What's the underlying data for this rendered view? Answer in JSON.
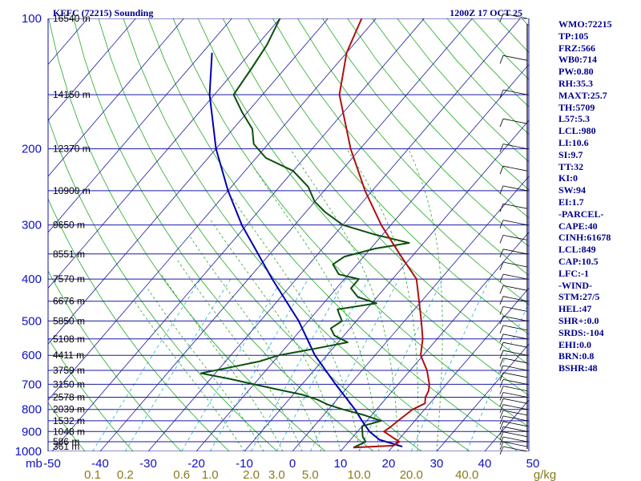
{
  "header": {
    "station": "KFFC (72215) Sounding",
    "time": "1200Z 17 OCT 25"
  },
  "indices": [
    "WMO:72215",
    "TP:105",
    "FRZ:566",
    "WB0:714",
    "PW:0.80",
    "RH:35.3",
    "MAXT:25.7",
    "TH:5709",
    "L57:5.3",
    "LCL:980",
    "LI:10.6",
    "SI:9.7",
    "TT:32",
    "KI:0",
    "SW:94",
    "EI:1.7",
    "-PARCEL-",
    "CAPE:40",
    "CINH:61678",
    "LCL:849",
    "CAP:10.5",
    "LFC:-1",
    "-WIND-",
    "STM:27/5",
    "HEL:47",
    "SHR+:0.0",
    "SRDS:-104",
    "EHI:0.0",
    "BRN:0.8",
    "BSHR:48"
  ],
  "chart_data": {
    "type": "skew-t",
    "x_unit_label": "mb",
    "x_ticks": [
      "-50",
      "-40",
      "-30",
      "-20",
      "-10",
      "0",
      "10",
      "20",
      "30",
      "40",
      "50"
    ],
    "mixing_ratio_unit": "g/kg",
    "mixing_ratio_labels": [
      "0.1",
      "0.2",
      "0.6",
      "1.0",
      "2.0",
      "3.0",
      "5.0",
      "10.0",
      "20.0",
      "40.0"
    ],
    "pressure_labels": [
      "100",
      "200",
      "300",
      "400",
      "500",
      "600",
      "700",
      "800",
      "900",
      "1000"
    ],
    "height_labels": [
      {
        "p": 100,
        "text": "16540 m"
      },
      {
        "p": 150,
        "text": "14150 m"
      },
      {
        "p": 200,
        "text": "12370 m"
      },
      {
        "p": 250,
        "text": "10900 m"
      },
      {
        "p": 300,
        "text": "9650 m"
      },
      {
        "p": 350,
        "text": "8551 m"
      },
      {
        "p": 400,
        "text": "7570 m"
      },
      {
        "p": 450,
        "text": "6676 m"
      },
      {
        "p": 500,
        "text": "5850 m"
      },
      {
        "p": 550,
        "text": "5108 m"
      },
      {
        "p": 600,
        "text": "4411 m"
      },
      {
        "p": 650,
        "text": "3759 m"
      },
      {
        "p": 700,
        "text": "3150 m"
      },
      {
        "p": 750,
        "text": "2578 m"
      },
      {
        "p": 800,
        "text": "2039 m"
      },
      {
        "p": 850,
        "text": "1532 m"
      },
      {
        "p": 900,
        "text": "1048 m"
      },
      {
        "p": 950,
        "text": "586 m"
      },
      {
        "p": 975,
        "text": "361 m"
      }
    ],
    "temperature": [
      [
        980,
        12.0
      ],
      [
        970,
        20.0
      ],
      [
        950,
        20.5
      ],
      [
        925,
        18.0
      ],
      [
        900,
        15.5
      ],
      [
        880,
        16.0
      ],
      [
        850,
        16.5
      ],
      [
        800,
        17.5
      ],
      [
        775,
        19.0
      ],
      [
        750,
        18.0
      ],
      [
        725,
        17.5
      ],
      [
        700,
        16.5
      ],
      [
        650,
        13.5
      ],
      [
        600,
        9.5
      ],
      [
        550,
        7.0
      ],
      [
        500,
        3.5
      ],
      [
        450,
        -0.5
      ],
      [
        400,
        -5.0
      ],
      [
        350,
        -13.0
      ],
      [
        300,
        -22.0
      ],
      [
        250,
        -31.5
      ],
      [
        200,
        -42.0
      ],
      [
        150,
        -54.0
      ],
      [
        120,
        -60.0
      ],
      [
        100,
        -63.0
      ]
    ],
    "dewpoint": [
      [
        980,
        12.0
      ],
      [
        950,
        13.5
      ],
      [
        925,
        12.0
      ],
      [
        900,
        11.0
      ],
      [
        875,
        10.0
      ],
      [
        850,
        13.0
      ],
      [
        825,
        8.5
      ],
      [
        800,
        3.0
      ],
      [
        780,
        -1.0
      ],
      [
        760,
        -4.0
      ],
      [
        740,
        -8.0
      ],
      [
        720,
        -14.0
      ],
      [
        700,
        -20.0
      ],
      [
        680,
        -26.0
      ],
      [
        660,
        -33.0
      ],
      [
        640,
        -28.0
      ],
      [
        620,
        -23.0
      ],
      [
        600,
        -20.0
      ],
      [
        580,
        -14.0
      ],
      [
        560,
        -8.0
      ],
      [
        540,
        -12.0
      ],
      [
        520,
        -14.0
      ],
      [
        500,
        -13.0
      ],
      [
        480,
        -15.0
      ],
      [
        470,
        -16.0
      ],
      [
        455,
        -9.0
      ],
      [
        440,
        -14.0
      ],
      [
        420,
        -17.0
      ],
      [
        400,
        -17.0
      ],
      [
        390,
        -22.0
      ],
      [
        370,
        -25.0
      ],
      [
        355,
        -24.0
      ],
      [
        340,
        -19.0
      ],
      [
        330,
        -13.0
      ],
      [
        315,
        -22.0
      ],
      [
        300,
        -30.0
      ],
      [
        280,
        -36.0
      ],
      [
        265,
        -40.0
      ],
      [
        245,
        -44.0
      ],
      [
        225,
        -50.0
      ],
      [
        210,
        -58.0
      ],
      [
        195,
        -63.0
      ],
      [
        180,
        -66.0
      ],
      [
        165,
        -71.0
      ],
      [
        150,
        -76.0
      ],
      [
        130,
        -77.0
      ],
      [
        115,
        -78.0
      ],
      [
        100,
        -80.0
      ]
    ],
    "parcel": [
      [
        975,
        22.0
      ],
      [
        940,
        16.0
      ],
      [
        900,
        12.5
      ],
      [
        850,
        9.0
      ],
      [
        800,
        5.5
      ],
      [
        700,
        -3.0
      ],
      [
        600,
        -12.5
      ],
      [
        500,
        -22.0
      ],
      [
        400,
        -35.0
      ],
      [
        300,
        -51.0
      ],
      [
        250,
        -60.0
      ],
      [
        200,
        -70.0
      ],
      [
        150,
        -81.0
      ],
      [
        120,
        -88.0
      ]
    ],
    "grid": true
  }
}
